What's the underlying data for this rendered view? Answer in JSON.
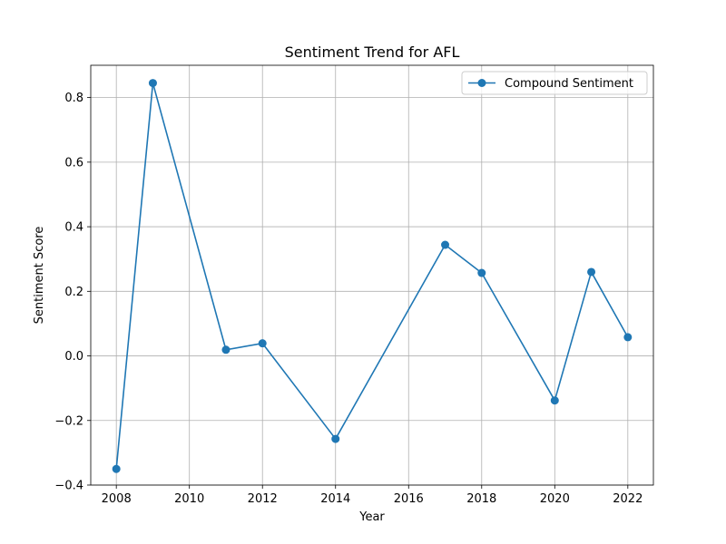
{
  "chart_data": {
    "type": "line",
    "title": "Sentiment Trend for AFL",
    "xlabel": "Year",
    "ylabel": "Sentiment Score",
    "xlim": [
      2007.3,
      2022.7
    ],
    "ylim": [
      -0.4,
      0.9
    ],
    "grid": true,
    "legend_position": "upper right",
    "x_ticks": [
      2008,
      2010,
      2012,
      2014,
      2016,
      2018,
      2020,
      2022
    ],
    "y_ticks": [
      -0.4,
      -0.2,
      0.0,
      0.2,
      0.4,
      0.6,
      0.8
    ],
    "x_tick_labels": [
      "2008",
      "2010",
      "2012",
      "2014",
      "2016",
      "2018",
      "2020",
      "2022"
    ],
    "y_tick_labels": [
      "−0.4",
      "−0.2",
      "0.0",
      "0.2",
      "0.4",
      "0.6",
      "0.8"
    ],
    "series": [
      {
        "name": "Compound Sentiment",
        "color": "#1f77b4",
        "marker": "circle",
        "x": [
          2008,
          2009,
          2011,
          2012,
          2014,
          2017,
          2018,
          2020,
          2021,
          2022
        ],
        "values": [
          -0.35,
          0.845,
          0.019,
          0.039,
          -0.257,
          0.344,
          0.257,
          -0.138,
          0.26,
          0.058
        ]
      }
    ]
  }
}
